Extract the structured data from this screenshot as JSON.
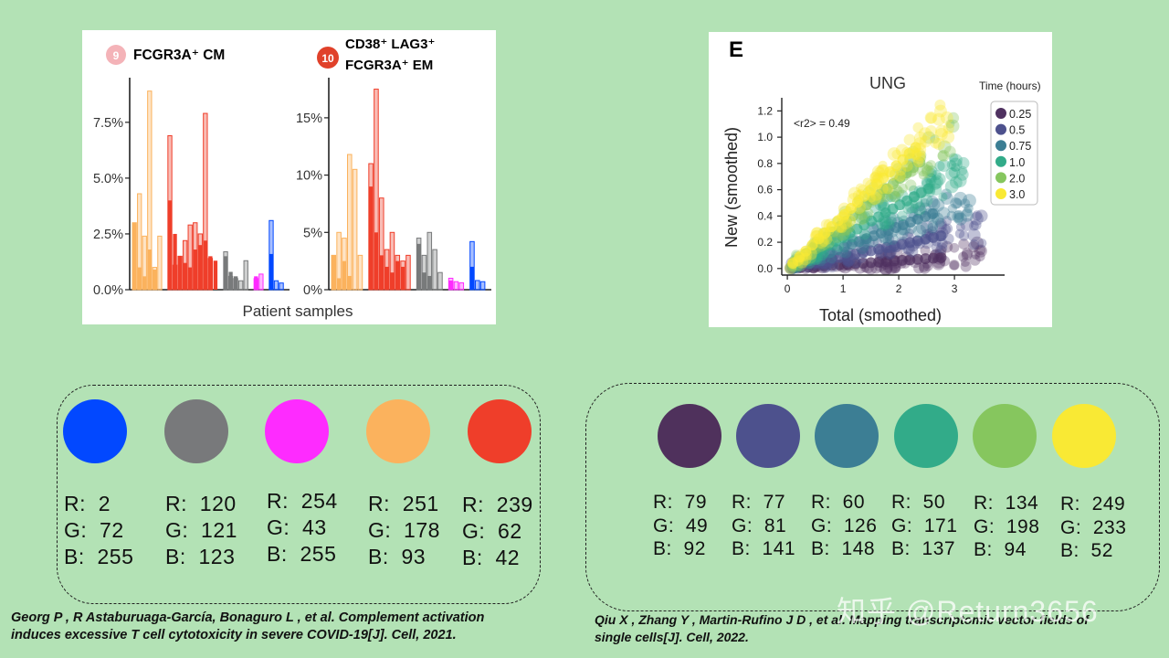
{
  "chart_data": [
    {
      "type": "bar",
      "panel": "left",
      "xlabel": "Patient samples",
      "subplots": [
        {
          "badge_number": "9",
          "badge_color": "#f4b3b8",
          "title_lines": [
            "FCGR3A⁺ CM"
          ],
          "ylim": [
            0,
            9.5
          ],
          "yticks": [
            "0.0%",
            "2.5%",
            "5.0%",
            "7.5%"
          ],
          "ytick_values": [
            0,
            2.5,
            5.0,
            7.5
          ],
          "groups": [
            {
              "color": "#fbb25d",
              "fill_values": [
                3.0,
                1.0,
                0.6,
                1.8,
                0.9
              ],
              "outline_values": [
                3.0,
                4.3,
                2.4,
                8.9,
                1.0,
                2.4
              ]
            },
            {
              "color": "#ef3e2a",
              "fill_values": [
                4.0,
                2.5,
                1.5,
                1.2,
                1.0,
                1.8,
                2.0,
                2.2,
                1.5,
                1.3
              ],
              "outline_values": [
                6.9,
                1.1,
                1.5,
                2.2,
                2.9,
                3.0,
                2.5,
                7.9,
                1.4
              ]
            },
            {
              "color": "#787a7b",
              "fill_values": [
                1.5,
                0.8,
                0.6
              ],
              "outline_values": [
                1.7,
                0.6,
                0.5,
                0.4,
                1.3
              ]
            },
            {
              "color": "#fe2bff",
              "fill_values": [
                0.6
              ],
              "outline_values": [
                0.5,
                0.7
              ]
            },
            {
              "color": "#0248ff",
              "fill_values": [
                1.6
              ],
              "outline_values": [
                3.1,
                0.4,
                0.3
              ]
            }
          ]
        },
        {
          "badge_number": "10",
          "badge_color": "#e0412a",
          "title_lines": [
            "CD38⁺ LAG3⁺",
            "FCGR3A⁺ EM"
          ],
          "ylim": [
            0,
            18.5
          ],
          "yticks": [
            "0%",
            "5%",
            "10%",
            "15%"
          ],
          "ytick_values": [
            0,
            5,
            10,
            15
          ],
          "groups": [
            {
              "color": "#fbb25d",
              "fill_values": [
                3.0,
                1.0,
                2.5,
                1.2
              ],
              "outline_values": [
                3.0,
                5.0,
                4.5,
                11.8,
                10.5,
                3.0
              ]
            },
            {
              "color": "#ef3e2a",
              "fill_values": [
                9.0,
                5.0,
                3.0,
                2.0,
                1.5,
                2.5,
                2.0
              ],
              "outline_values": [
                11.0,
                17.5,
                8.0,
                3.5,
                5.0,
                3.0,
                2.5,
                3.0
              ]
            },
            {
              "color": "#787a7b",
              "fill_values": [
                4.0,
                1.5,
                1.2
              ],
              "outline_values": [
                4.5,
                3.0,
                5.0,
                3.5,
                1.5
              ]
            },
            {
              "color": "#fe2bff",
              "fill_values": [
                0.8
              ],
              "outline_values": [
                1.0,
                0.7,
                0.6
              ]
            },
            {
              "color": "#0248ff",
              "fill_values": [
                2.0
              ],
              "outline_values": [
                4.2,
                0.8,
                0.7
              ]
            }
          ]
        }
      ]
    },
    {
      "type": "scatter",
      "panel": "right",
      "panel_letter": "E",
      "title": "UNG",
      "annotation": "<r2> = 0.49",
      "xlabel": "Total (smoothed)",
      "ylabel": "New (smoothed)",
      "xlim": [
        -0.1,
        3.9
      ],
      "ylim": [
        -0.05,
        1.3
      ],
      "xticks": [
        0,
        1,
        2,
        3
      ],
      "xtick_labels": [
        "0",
        "1",
        "2",
        "3"
      ],
      "yticks": [
        0,
        0.2,
        0.4,
        0.6,
        0.8,
        1.0,
        1.2
      ],
      "ytick_labels": [
        "0.0",
        "0.2",
        "0.4",
        "0.6",
        "0.8",
        "1.0",
        "1.2"
      ],
      "legend_title": "Time (hours)",
      "legend_position": "right",
      "series": [
        {
          "name": "0.25",
          "color": "#4f3160",
          "slope": 0.03,
          "spread": 0.07,
          "x_max": 3.5
        },
        {
          "name": "0.5",
          "color": "#4d518d",
          "slope": 0.09,
          "spread": 0.08,
          "x_max": 3.5
        },
        {
          "name": "0.75",
          "color": "#3c7e94",
          "slope": 0.16,
          "spread": 0.09,
          "x_max": 3.3
        },
        {
          "name": "1.0",
          "color": "#32ab89",
          "slope": 0.24,
          "spread": 0.1,
          "x_max": 3.2
        },
        {
          "name": "2.0",
          "color": "#86c65e",
          "slope": 0.34,
          "spread": 0.11,
          "x_max": 3.0
        },
        {
          "name": "3.0",
          "color": "#f9e934",
          "slope": 0.4,
          "spread": 0.12,
          "x_max": 2.9
        }
      ]
    }
  ],
  "palette_left": [
    {
      "color": "#0248ff",
      "r_label": "R:  2",
      "g_label": "G:  72",
      "b_label": "B:  255"
    },
    {
      "color": "#78797b",
      "r_label": "R:  120",
      "g_label": "G:  121",
      "b_label": "B:  123"
    },
    {
      "color": "#fe2bff",
      "r_label": "R:  254",
      "g_label": "G:  43",
      "b_label": "B:  255"
    },
    {
      "color": "#fbb25d",
      "r_label": "R:  251",
      "g_label": "G:  178",
      "b_label": "B:  93"
    },
    {
      "color": "#ef3e2a",
      "r_label": "R:  239",
      "g_label": "G:  62",
      "b_label": "B:  42"
    }
  ],
  "palette_right": [
    {
      "color": "#4f315c",
      "r_label": "R:  79",
      "g_label": "G:  49",
      "b_label": "B:  92"
    },
    {
      "color": "#4d518d",
      "r_label": "R:  77",
      "g_label": "G:  81",
      "b_label": "B:  141"
    },
    {
      "color": "#3c7e94",
      "r_label": "R:  60",
      "g_label": "G:  126",
      "b_label": "B:  148"
    },
    {
      "color": "#32ab89",
      "r_label": "R:  50",
      "g_label": "G:  171",
      "b_label": "B:  137"
    },
    {
      "color": "#86c65e",
      "r_label": "R:  134",
      "g_label": "G:  198",
      "b_label": "B:  94"
    },
    {
      "color": "#f9e934",
      "r_label": "R:  249",
      "g_label": "G:  233",
      "b_label": "B:  52"
    }
  ],
  "citations": {
    "left_line1": "Georg P , R Astaburuaga-García,  Bonaguro L , et al. Complement activation",
    "left_line2": "induces excessive T cell cytotoxicity in severe COVID-19[J]. Cell, 2021.",
    "right_line1": "Qiu X ,  Zhang Y ,  Martin-Rufino J D , et al. Mapping transcriptomic vector fields of",
    "right_line2": "single cells[J]. Cell, 2022."
  },
  "watermark": "知乎 @Return3656"
}
